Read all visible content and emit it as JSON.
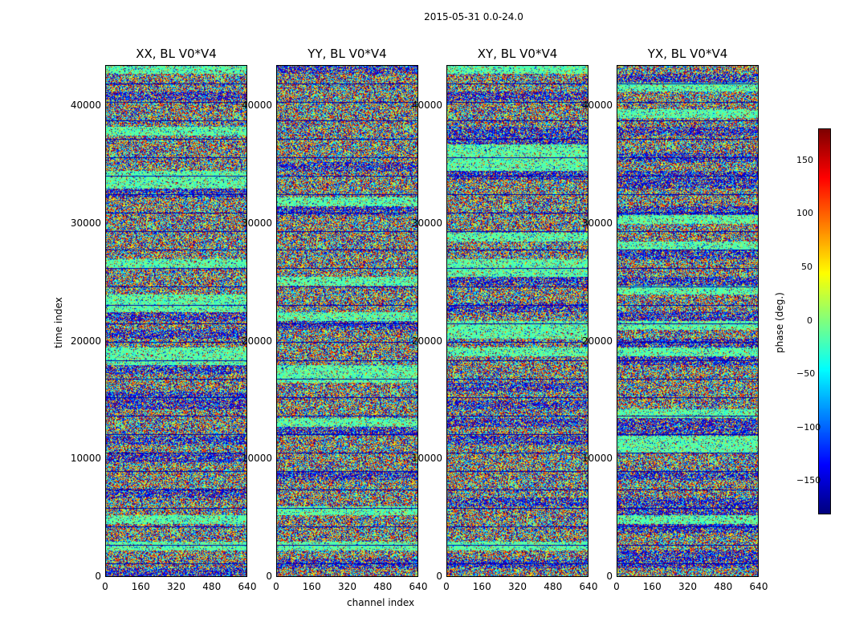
{
  "suptitle": "2015-05-31 0.0-24.0",
  "chart_data": {
    "type": "heatmap",
    "panels": [
      {
        "title": "XX, BL V0*V4"
      },
      {
        "title": "YY, BL V0*V4"
      },
      {
        "title": "XY, BL V0*V4"
      },
      {
        "title": "YX, BL V0*V4"
      }
    ],
    "xlabel": "channel index",
    "ylabel": "time index",
    "xlim": [
      0,
      640
    ],
    "ylim": [
      0,
      43500
    ],
    "xticks": [
      "0",
      "160",
      "320",
      "480",
      "640"
    ],
    "yticks": [
      "0",
      "10000",
      "20000",
      "30000",
      "40000"
    ],
    "colorbar": {
      "label": "phase (deg.)",
      "range": [
        -180,
        180
      ],
      "ticks": [
        "150",
        "100",
        "50",
        "0",
        "−50",
        "−100",
        "−150"
      ],
      "colormap": "jet"
    }
  }
}
